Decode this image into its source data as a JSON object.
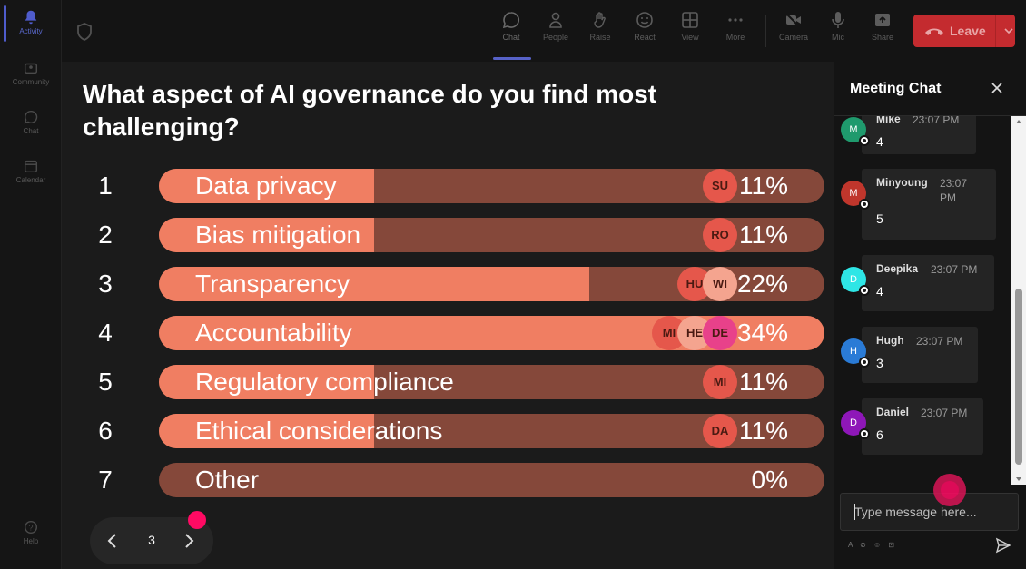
{
  "rail": {
    "items": [
      {
        "label": "Activity",
        "icon": "bell-icon",
        "active": true
      },
      {
        "label": "Community",
        "icon": "community-icon"
      },
      {
        "label": "Chat",
        "icon": "chat-icon"
      },
      {
        "label": "Calendar",
        "icon": "calendar-icon"
      },
      {
        "label": "Help",
        "icon": "help-icon"
      }
    ]
  },
  "toolbar": {
    "buttons": [
      {
        "label": "Chat",
        "icon": "chat-icon"
      },
      {
        "label": "People",
        "icon": "people-icon"
      },
      {
        "label": "Raise",
        "icon": "hand-icon"
      },
      {
        "label": "React",
        "icon": "smiley-icon"
      },
      {
        "label": "View",
        "icon": "grid-icon"
      },
      {
        "label": "More",
        "icon": "more-icon"
      },
      {
        "label": "Camera",
        "icon": "camera-off-icon"
      },
      {
        "label": "Mic",
        "icon": "mic-icon"
      },
      {
        "label": "Share",
        "icon": "share-icon"
      }
    ],
    "leave_label": "Leave",
    "leave_color": "#c42b2f"
  },
  "poll": {
    "question": "What aspect of AI governance do you find most challenging?",
    "options": [
      {
        "num": "1",
        "label": "Data privacy",
        "pct_text": "11%",
        "pct": 11,
        "voters": [
          "SU"
        ]
      },
      {
        "num": "2",
        "label": "Bias mitigation",
        "pct_text": "11%",
        "pct": 11,
        "voters": [
          "RO"
        ]
      },
      {
        "num": "3",
        "label": "Transparency",
        "pct_text": "22%",
        "pct": 22,
        "voters": [
          "HU",
          "WI"
        ]
      },
      {
        "num": "4",
        "label": "Accountability",
        "pct_text": "34%",
        "pct": 34,
        "voters": [
          "MI",
          "HE",
          "DE"
        ]
      },
      {
        "num": "5",
        "label": "Regulatory compliance",
        "pct_text": "11%",
        "pct": 11,
        "voters": [
          "MI"
        ]
      },
      {
        "num": "6",
        "label": "Ethical considerations",
        "pct_text": "11%",
        "pct": 11,
        "voters": [
          "DA"
        ]
      },
      {
        "num": "7",
        "label": "Other",
        "pct_text": "0%",
        "pct": 0,
        "voters": []
      }
    ],
    "fill_color": "#f07e62",
    "track_color": "#85483a",
    "page": "3"
  },
  "chat": {
    "title": "Meeting Chat",
    "messages": [
      {
        "initial": "M",
        "name": "Mike",
        "time": "23:07 PM",
        "text": "4",
        "avatar_color": "#1f9a6d"
      },
      {
        "initial": "M",
        "name": "Minyoung",
        "time": "23:07 PM",
        "text": "5",
        "avatar_color": "#c0362c"
      },
      {
        "initial": "D",
        "name": "Deepika",
        "time": "23:07 PM",
        "text": "4",
        "avatar_color": "#2ee6e6"
      },
      {
        "initial": "H",
        "name": "Hugh",
        "time": "23:07 PM",
        "text": "3",
        "avatar_color": "#2a7bd6"
      },
      {
        "initial": "D",
        "name": "Daniel",
        "time": "23:07 PM",
        "text": "6",
        "avatar_color": "#8e17b8"
      }
    ],
    "input_placeholder": "Type message here..."
  }
}
